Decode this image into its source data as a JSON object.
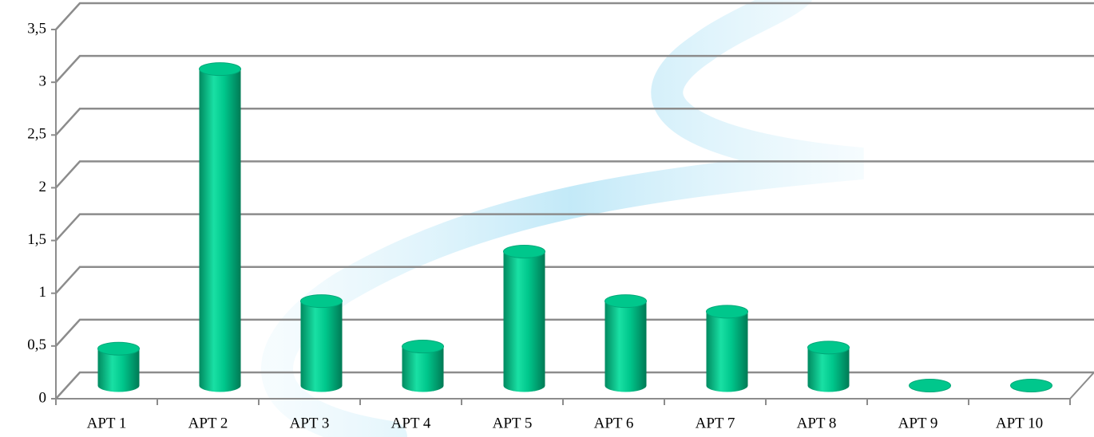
{
  "chart_data": {
    "type": "bar3d",
    "categories": [
      "APT 1",
      "APT 2",
      "APT 3",
      "APT 4",
      "APT 5",
      "APT 6",
      "APT 7",
      "APT 8",
      "APT 9",
      "APT 10"
    ],
    "values": [
      0.35,
      3.0,
      0.8,
      0.37,
      1.27,
      0.8,
      0.7,
      0.36,
      0,
      0
    ],
    "color": "#00c78c",
    "ylim": [
      0,
      3.5
    ],
    "yticks": [
      0,
      {
        "value": 0.5,
        "label": "0,5"
      },
      1,
      {
        "value": 1.5,
        "label": "1,5"
      },
      2,
      {
        "value": 2.5,
        "label": "2,5"
      },
      3,
      {
        "value": 3.5,
        "label": "3,5"
      }
    ],
    "grid": true
  }
}
